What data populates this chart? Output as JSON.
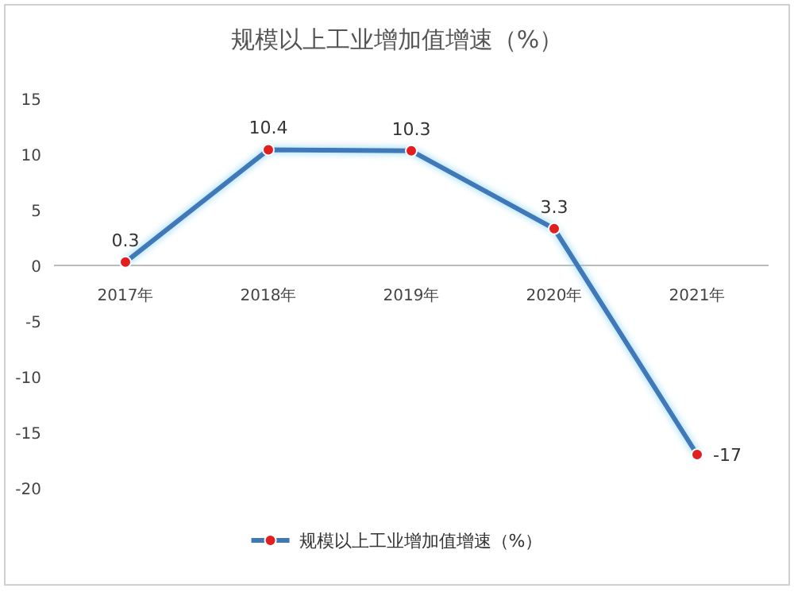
{
  "chart_data": {
    "type": "line",
    "title": "规模以上工业增加值增速（%）",
    "categories": [
      "2017年",
      "2018年",
      "2019年",
      "2020年",
      "2021年"
    ],
    "series": [
      {
        "name": "规模以上工业增加值增速（%）",
        "color": "#3f78b8",
        "values": [
          0.3,
          10.4,
          10.3,
          3.3,
          -17
        ]
      }
    ],
    "ylim": [
      -20,
      15
    ],
    "yticks": [
      -20,
      -15,
      -10,
      -5,
      0,
      5,
      10,
      15
    ],
    "data_labels": true,
    "legend": "bottom",
    "grid": false,
    "marker": "circle",
    "line_style": "solid"
  }
}
